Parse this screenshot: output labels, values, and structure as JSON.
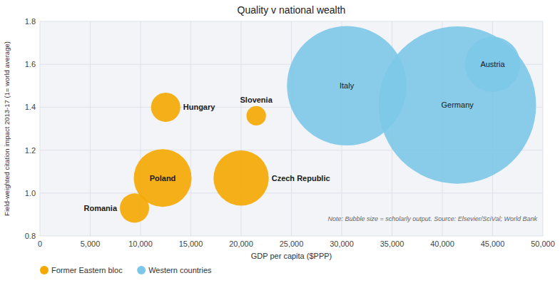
{
  "chart_data": {
    "type": "bubble",
    "title": "Quality v national wealth",
    "x_label": "GDP per capita ($PPP)",
    "y_label": "Field-weighted citation impact 2013-17 (1= world average)",
    "note": "Note: Bubble size = scholarly output. Source: Elsevier/SciVal; World Bank",
    "xlim": [
      0,
      50000
    ],
    "ylim": [
      0.8,
      1.8
    ],
    "xticks": [
      0,
      {
        "value": 5000,
        "label": "5,000"
      },
      {
        "value": 10000,
        "label": "10,000"
      },
      {
        "value": 15000,
        "label": "15,000"
      },
      {
        "value": 20000,
        "label": "20,000"
      },
      {
        "value": 25000,
        "label": "25,000"
      },
      {
        "value": 30000,
        "label": "30,000"
      },
      {
        "value": 35000,
        "label": "35,000"
      },
      {
        "value": 40000,
        "label": "40,000"
      },
      {
        "value": 45000,
        "label": "45,000"
      },
      {
        "value": 50000,
        "label": "50,000"
      }
    ],
    "yticks": [
      0.8,
      {
        "value": 1.0,
        "label": "1.0"
      },
      1.2,
      1.4,
      1.6,
      1.8
    ],
    "grid": true,
    "legend": "bottom",
    "series": [
      {
        "name": "Former Eastern bloc",
        "color": "#f5a800",
        "labels": [
          "Romania",
          "Hungary",
          "Poland",
          "Czech Republic",
          "Slovenia"
        ],
        "x": [
          9400,
          12500,
          12200,
          20000,
          21500
        ],
        "values": [
          0.93,
          1.4,
          1.07,
          1.07,
          1.36
        ],
        "sizes": [
          900,
          900,
          3500,
          3200,
          400
        ]
      },
      {
        "name": "Western countries",
        "color": "#7dc8e8",
        "labels": [
          "Italy",
          "Germany",
          "Austria"
        ],
        "x": [
          30500,
          41500,
          45000
        ],
        "values": [
          1.5,
          1.41,
          1.6
        ],
        "sizes": [
          15000,
          26000,
          3200
        ]
      }
    ]
  }
}
